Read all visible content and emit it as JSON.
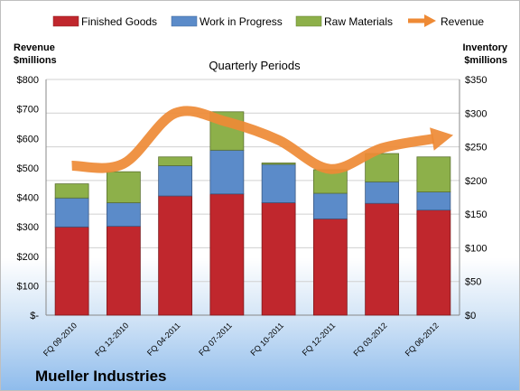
{
  "chart_data": {
    "type": "bar",
    "stacked": true,
    "title": "Quarterly Periods",
    "company": "Mueller Industries",
    "categories": [
      "FQ 09-2010",
      "FQ 12-2010",
      "FQ 04-2011",
      "FQ 07-2011",
      "FQ 10-2011",
      "FQ 12-2011",
      "FQ 03-2012",
      "FQ 06-2012"
    ],
    "series": [
      {
        "name": "Finished Goods",
        "color": "#c0272d",
        "values": [
          131,
          132,
          177,
          180,
          167,
          143,
          166,
          156
        ]
      },
      {
        "name": "Work in Progress",
        "color": "#5b8bc9",
        "values": [
          43,
          35,
          45,
          65,
          57,
          38,
          32,
          27
        ]
      },
      {
        "name": "Raw Materials",
        "color": "#8db04a",
        "values": [
          21,
          46,
          13,
          57,
          2,
          35,
          42,
          52
        ]
      }
    ],
    "line_series": {
      "name": "Revenue",
      "color": "#ee8a35",
      "values": [
        222,
        225,
        300,
        287,
        260,
        217,
        248,
        262
      ]
    },
    "left_axis": {
      "label_line1": "Revenue",
      "label_line2": "$millions",
      "ticks": [
        "$-",
        "$100",
        "$200",
        "$300",
        "$400",
        "$500",
        "$600",
        "$700",
        "$800"
      ]
    },
    "right_axis": {
      "label_line1": "Inventory",
      "label_line2": "$millions",
      "ticks": [
        "$0",
        "$50",
        "$100",
        "$150",
        "$200",
        "$250",
        "$300",
        "$350"
      ]
    },
    "ylim_right": [
      0,
      350
    ],
    "grid": true,
    "legend_position": "top"
  }
}
